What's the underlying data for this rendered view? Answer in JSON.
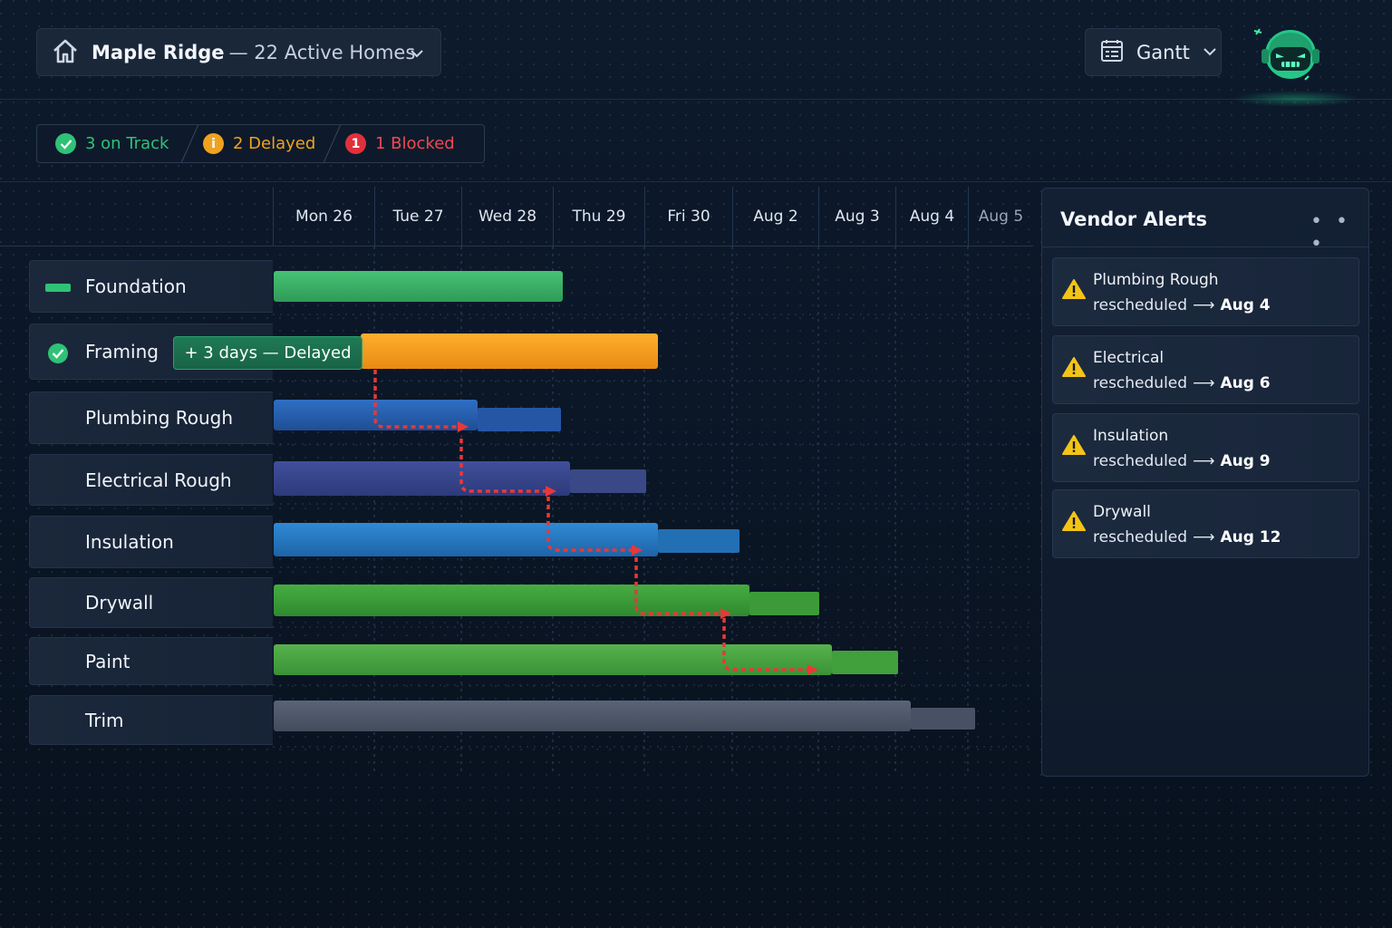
{
  "header": {
    "project_title": "Maple Ridge",
    "project_subtitle": "— 22 Active Homes",
    "view_label": "Gantt"
  },
  "status": {
    "on_track": "3 on Track",
    "delayed": "2 Delayed",
    "blocked": "1 Blocked",
    "delayed_icon": "i",
    "blocked_icon": "1",
    "colors": {
      "on_track": "#2fc277",
      "delayed": "#f0a21f",
      "blocked": "#e0313b"
    }
  },
  "timeline": {
    "dates": [
      "Mon 26",
      "Tue 27",
      "Wed 28",
      "Thu 29",
      "Fri 30",
      "Aug 2",
      "Aug 3",
      "Aug 4",
      "Aug 5"
    ]
  },
  "tasks": [
    {
      "label": "Foundation",
      "status_icon": "green-dash",
      "color": "#3fb46a"
    },
    {
      "label": "Framing",
      "status_icon": "check-circle",
      "color": "#f39a1c"
    },
    {
      "label": "Plumbing Rough",
      "color": "#2a66b8"
    },
    {
      "label": "Electrical Rough",
      "color": "#3a4c94"
    },
    {
      "label": "Insulation",
      "color": "#2a7cc4"
    },
    {
      "label": "Drywall",
      "color": "#3c9e3c"
    },
    {
      "label": "Paint",
      "color": "#4aa443"
    },
    {
      "label": "Trim",
      "color": "#4b5669"
    }
  ],
  "delay_badge": "+ 3 days — Delayed",
  "alerts": {
    "title": "Vendor Alerts",
    "more": "• • •",
    "items": [
      {
        "name": "Plumbing Rough",
        "text": "rescheduled",
        "date": "Aug 4"
      },
      {
        "name": "Electrical",
        "text": "rescheduled",
        "date": "Aug 6"
      },
      {
        "name": "Insulation",
        "text": "rescheduled",
        "date": "Aug 9"
      },
      {
        "name": "Drywall",
        "text": "rescheduled",
        "date": "Aug 12"
      }
    ]
  },
  "icons": {
    "home": "home-icon",
    "calendar": "calendar-icon",
    "chevron": "chevron-down-icon",
    "warning": "warning-icon",
    "robot": "robot-avatar-icon"
  }
}
